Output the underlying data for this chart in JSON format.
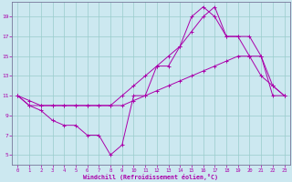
{
  "xlabel": "Windchill (Refroidissement éolien,°C)",
  "bg_color": "#cce8f0",
  "line_color": "#aa00aa",
  "grid_color": "#99cccc",
  "xlim": [
    -0.5,
    23.5
  ],
  "ylim": [
    4,
    20.5
  ],
  "xticks": [
    0,
    1,
    2,
    3,
    4,
    5,
    6,
    7,
    8,
    9,
    10,
    11,
    12,
    13,
    14,
    15,
    16,
    17,
    18,
    19,
    20,
    21,
    22,
    23
  ],
  "yticks": [
    5,
    7,
    9,
    11,
    13,
    15,
    17,
    19
  ],
  "series": [
    {
      "x": [
        0,
        1,
        2,
        3,
        4,
        5,
        6,
        7,
        8,
        9,
        10,
        11,
        12,
        13,
        14,
        15,
        16,
        17,
        18,
        19,
        20,
        21,
        22,
        23
      ],
      "y": [
        11,
        10.5,
        10,
        10,
        10,
        10,
        10,
        10,
        10,
        10,
        10.5,
        11,
        11.5,
        12,
        12.5,
        13,
        13.5,
        14,
        14.5,
        15,
        15,
        15,
        11,
        11
      ]
    },
    {
      "x": [
        0,
        1,
        2,
        3,
        4,
        5,
        6,
        7,
        8,
        9,
        10,
        11,
        12,
        13,
        14,
        15,
        16,
        17,
        18,
        19,
        20,
        21,
        22,
        23
      ],
      "y": [
        11,
        10,
        9.5,
        8.5,
        8,
        8,
        7,
        7,
        5,
        6,
        11,
        11,
        14,
        14,
        16,
        19,
        20,
        19,
        17,
        17,
        15,
        13,
        12,
        11
      ]
    },
    {
      "x": [
        0,
        1,
        2,
        3,
        4,
        5,
        6,
        7,
        8,
        9,
        10,
        11,
        12,
        13,
        14,
        15,
        16,
        17,
        18,
        19,
        20,
        21,
        22,
        23
      ],
      "y": [
        11,
        10,
        10,
        10,
        10,
        10,
        10,
        10,
        10,
        11,
        12,
        13,
        14,
        15,
        16,
        17.5,
        19,
        20,
        17,
        17,
        17,
        15,
        12,
        11
      ]
    }
  ]
}
